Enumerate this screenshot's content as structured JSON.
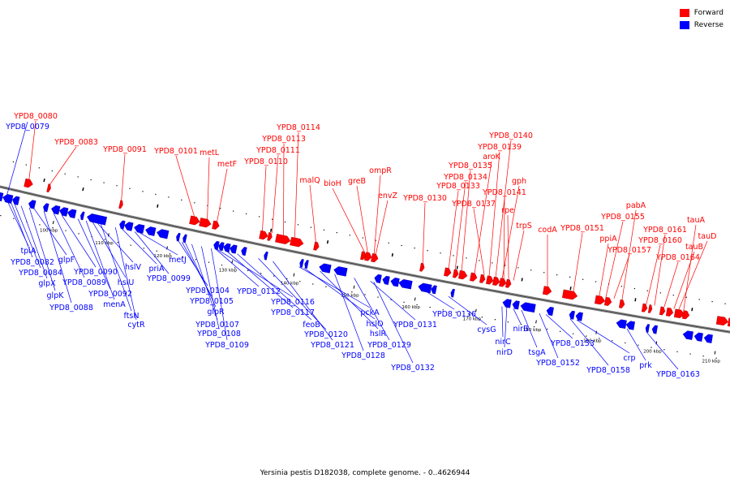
{
  "colors": {
    "forward": "#ff0000",
    "reverse": "#0000ff",
    "backbone": "#808080",
    "backbone_dark": "#404040"
  },
  "legend": {
    "items": [
      {
        "label": "Forward",
        "color": "#ff0000"
      },
      {
        "label": "Reverse",
        "color": "#0000ff"
      }
    ]
  },
  "caption": "Yersinia pestis D182038, complete genome. - 0..4626944",
  "scale_labels": [
    "100 kbp",
    "110 kbp",
    "120 kbp",
    "130 kbp",
    "140 kbp",
    "150 kbp",
    "160 kbp",
    "170 kbp",
    "180 kbp",
    "190 kbp",
    "200 kbp",
    "210 kbp"
  ],
  "forward_labels": [
    "YPD8_0080",
    "YPD8_0083",
    "YPD8_0091",
    "YPD8_0101",
    "metL",
    "metF",
    "YPD8_0110",
    "YPD8_0111",
    "YPD8_0113",
    "YPD8_0114",
    "malQ",
    "bioH",
    "greB",
    "ompR",
    "envZ",
    "YPD8_0130",
    "YPD8_0133",
    "YPD8_0134",
    "YPD8_0135",
    "aroK",
    "YPD8_0137",
    "YPD8_0139",
    "YPD8_0140",
    "gph",
    "YPD8_0141",
    "rpe",
    "trpS",
    "codA",
    "YPD8_0151",
    "ppiA",
    "YPD8_0155",
    "pabA",
    "YPD8_0157",
    "YPD8_0160",
    "YPD8_0161",
    "YPD8_0164",
    "tauB",
    "tauD",
    "tauA"
  ],
  "reverse_labels": [
    "YPD8_0079",
    "tpiA",
    "YPD8_0082",
    "YPD8_0084",
    "glpF",
    "glpX",
    "glpK",
    "YPD8_0088",
    "YPD8_0089",
    "YPD8_0090",
    "YPD8_0092",
    "menA",
    "hslU",
    "hslV",
    "ftsN",
    "cytR",
    "priA",
    "YPD8_0099",
    "metJ",
    "YPD8_0104",
    "YPD8_0105",
    "glpR",
    "YPD8_0107",
    "YPD8_0108",
    "YPD8_0109",
    "YPD8_0112",
    "YPD8_0116",
    "YPD8_0117",
    "feoB",
    "YPD8_0120",
    "YPD8_0121",
    "pckA",
    "hslO",
    "hslR",
    "YPD8_0128",
    "YPD8_0129",
    "YPD8_0131",
    "YPD8_0132",
    "YPD8_0136",
    "cysG",
    "nirC",
    "nirD",
    "nirB",
    "tsgA",
    "YPD8_0152",
    "YPD8_0153",
    "YPD8_0158",
    "crp",
    "prk",
    "YPD8_0163"
  ]
}
